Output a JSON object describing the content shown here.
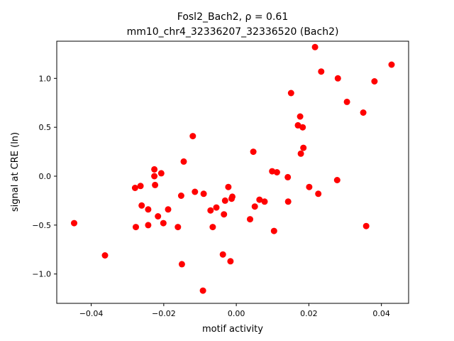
{
  "chart_data": {
    "type": "scatter",
    "title_line1": "Fosl2_Bach2, ρ = 0.61",
    "title_line2": "mm10_chr4_32336207_32336520 (Bach2)",
    "xlabel": "motif activity",
    "ylabel": "signal at CRE (ln)",
    "xlim": [
      -0.0495,
      0.0475
    ],
    "ylim": [
      -1.3,
      1.38
    ],
    "xticks": [
      -0.04,
      -0.02,
      0.0,
      0.02,
      0.04
    ],
    "xtick_labels": [
      "−0.04",
      "−0.02",
      "0.00",
      "0.02",
      "0.04"
    ],
    "yticks": [
      -1.0,
      -0.5,
      0.0,
      0.5,
      1.0
    ],
    "ytick_labels": [
      "−1.0",
      "−0.5",
      "0.0",
      "0.5",
      "1.0"
    ],
    "grid": false,
    "marker_color": "#ff0000",
    "points": [
      [
        -0.0447,
        -0.48
      ],
      [
        -0.0362,
        -0.81
      ],
      [
        -0.0279,
        -0.12
      ],
      [
        -0.0277,
        -0.52
      ],
      [
        -0.0264,
        -0.1
      ],
      [
        -0.0261,
        -0.3
      ],
      [
        -0.0243,
        -0.5
      ],
      [
        -0.0243,
        -0.34
      ],
      [
        -0.0226,
        0.07
      ],
      [
        -0.0226,
        0.0
      ],
      [
        -0.0224,
        -0.09
      ],
      [
        -0.0216,
        -0.41
      ],
      [
        -0.0207,
        0.03
      ],
      [
        -0.0201,
        -0.48
      ],
      [
        -0.0188,
        -0.34
      ],
      [
        -0.0161,
        -0.52
      ],
      [
        -0.0152,
        -0.2
      ],
      [
        -0.015,
        -0.9
      ],
      [
        -0.0145,
        0.15
      ],
      [
        -0.012,
        0.41
      ],
      [
        -0.0114,
        -0.16
      ],
      [
        -0.0092,
        -1.17
      ],
      [
        -0.009,
        -0.18
      ],
      [
        -0.0071,
        -0.35
      ],
      [
        -0.0065,
        -0.52
      ],
      [
        -0.0055,
        -0.32
      ],
      [
        -0.0037,
        -0.8
      ],
      [
        -0.0034,
        -0.39
      ],
      [
        -0.0031,
        -0.25
      ],
      [
        -0.0022,
        -0.11
      ],
      [
        -0.0016,
        -0.87
      ],
      [
        -0.0013,
        -0.23
      ],
      [
        -0.0011,
        -0.21
      ],
      [
        0.0038,
        -0.44
      ],
      [
        0.0047,
        0.25
      ],
      [
        0.0051,
        -0.31
      ],
      [
        0.0064,
        -0.24
      ],
      [
        0.0078,
        -0.26
      ],
      [
        0.0099,
        0.05
      ],
      [
        0.0104,
        -0.56
      ],
      [
        0.0112,
        0.04
      ],
      [
        0.0142,
        -0.01
      ],
      [
        0.0143,
        -0.26
      ],
      [
        0.0151,
        0.85
      ],
      [
        0.017,
        0.52
      ],
      [
        0.0176,
        0.61
      ],
      [
        0.0178,
        0.23
      ],
      [
        0.0183,
        0.5
      ],
      [
        0.0185,
        0.29
      ],
      [
        0.0201,
        -0.11
      ],
      [
        0.0217,
        1.32
      ],
      [
        0.0226,
        -0.18
      ],
      [
        0.0234,
        1.07
      ],
      [
        0.0278,
        -0.04
      ],
      [
        0.028,
        1.0
      ],
      [
        0.0305,
        0.76
      ],
      [
        0.035,
        0.65
      ],
      [
        0.0358,
        -0.51
      ],
      [
        0.0381,
        0.97
      ],
      [
        0.0428,
        1.14
      ]
    ]
  }
}
